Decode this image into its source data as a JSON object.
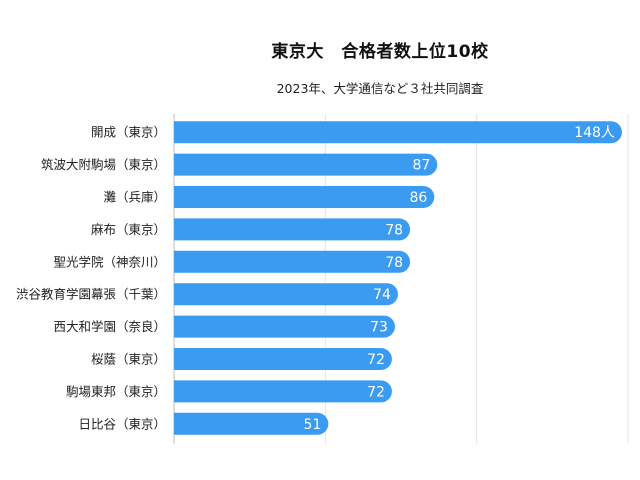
{
  "title": "東京大　合格者数上位10校",
  "subtitle": "2023年、大学通信など３社共同調査",
  "bar_color": "#3a9bf0",
  "value_color": "#ffffff",
  "chart_data": {
    "type": "bar",
    "orientation": "horizontal",
    "title": "東京大　合格者数上位10校",
    "subtitle": "2023年、大学通信など３社共同調査",
    "categories": [
      "開成（東京）",
      "筑波大附駒場（東京）",
      "灘（兵庫）",
      "麻布（東京）",
      "聖光学院（神奈川）",
      "渋谷教育学園幕張（千葉）",
      "西大和学園（奈良）",
      "桜蔭（東京）",
      "駒場東邦（東京）",
      "日比谷（東京）"
    ],
    "values": [
      148,
      87,
      86,
      78,
      78,
      74,
      73,
      72,
      72,
      51
    ],
    "value_labels": [
      "148人",
      "87",
      "86",
      "78",
      "78",
      "74",
      "73",
      "72",
      "72",
      "51"
    ],
    "xlim": [
      0,
      150
    ],
    "grid": true,
    "legend": "none"
  }
}
